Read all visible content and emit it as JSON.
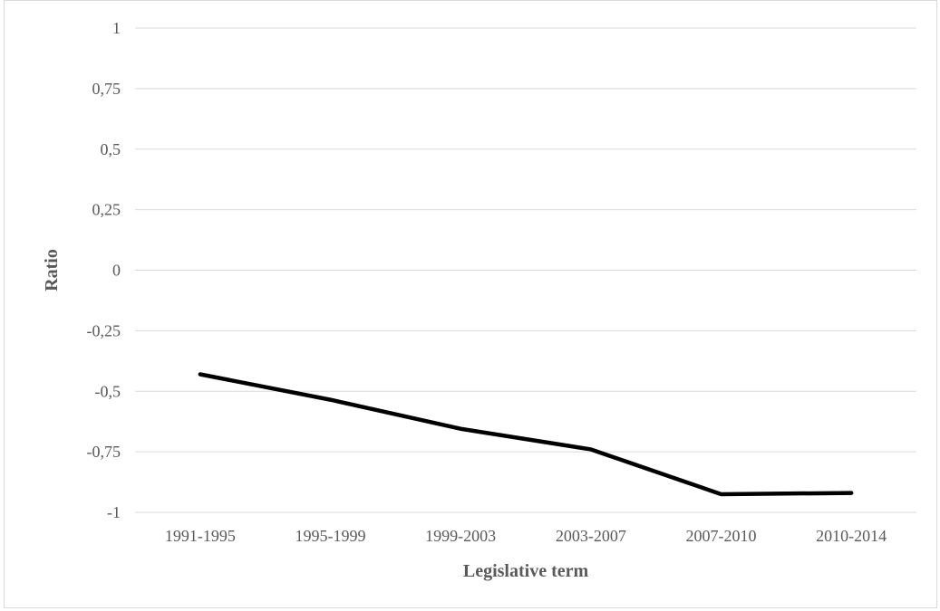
{
  "chart_data": {
    "type": "line",
    "title": "",
    "xlabel": "Legislative term",
    "ylabel": "Ratio",
    "categories": [
      "1991-1995",
      "1995-1999",
      "1999-2003",
      "2003-2007",
      "2007-2010",
      "2010-2014"
    ],
    "series": [
      {
        "values": [
          -0.43,
          -0.535,
          -0.655,
          -0.74,
          -0.925,
          -0.92
        ],
        "color": "#000000"
      }
    ],
    "ylim": [
      -1,
      1
    ],
    "yticks": [
      1,
      0.75,
      0.5,
      0.25,
      0,
      -0.25,
      -0.5,
      -0.75,
      -1
    ],
    "ytick_labels": [
      "1",
      "0,75",
      "0,5",
      "0,25",
      "0",
      "-0,25",
      "-0,5",
      "-0,75",
      "-1"
    ],
    "grid": true,
    "legend": "none",
    "gridline_color": "#d9d9d9",
    "label_color": "#595959"
  }
}
